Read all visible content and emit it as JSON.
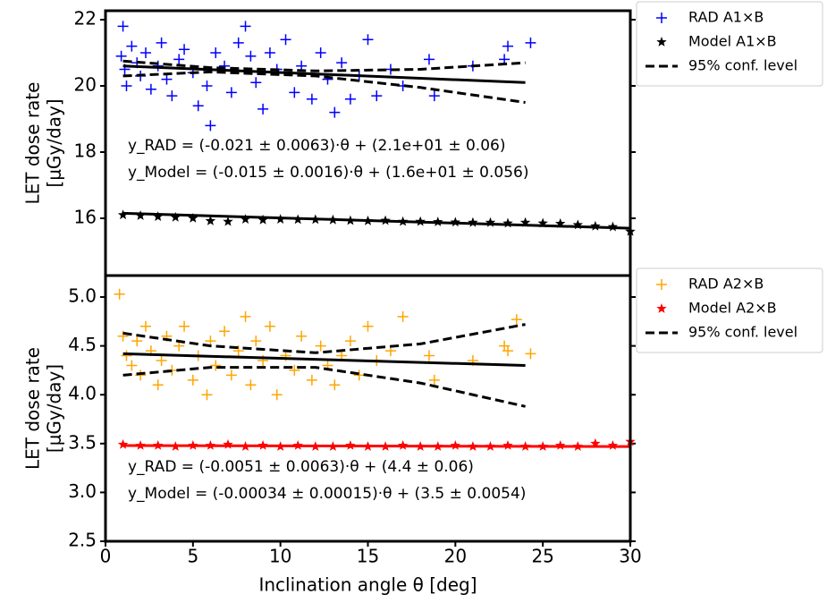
{
  "chart_data": [
    {
      "type": "scatter",
      "ylabel": [
        "LET dose rate",
        "[μGy/day]"
      ],
      "xlim": [
        0,
        30
      ],
      "ylim": [
        14.27,
        22.27
      ],
      "yticks": [
        16,
        18,
        20,
        22
      ],
      "annotations": [
        "y_RAD = (-0.021 ± 0.0063)·θ + (2.1e+01 ± 0.06)",
        "y_Model = (-0.015 ± 0.0016)·θ + (1.6e+01 ± 0.056)"
      ],
      "series": [
        {
          "name": "RAD A1×B",
          "marker": "+",
          "color": "#0000ff",
          "x": [
            1.0,
            0.9,
            1.1,
            1.2,
            1.5,
            1.8,
            2.0,
            2.3,
            2.6,
            3.0,
            3.2,
            3.5,
            3.8,
            4.2,
            4.5,
            5.0,
            5.3,
            5.8,
            6.0,
            6.3,
            6.8,
            7.2,
            7.6,
            8.0,
            8.3,
            8.6,
            9.0,
            9.4,
            9.8,
            10.3,
            10.8,
            11.2,
            11.8,
            12.3,
            12.7,
            13.1,
            13.5,
            14.0,
            14.5,
            15.0,
            15.5,
            16.3,
            17.0,
            18.5,
            18.8,
            21.0,
            22.8,
            23.0,
            24.3
          ],
          "values": [
            21.8,
            20.9,
            20.5,
            20.0,
            21.2,
            20.7,
            20.3,
            21.0,
            19.9,
            20.6,
            21.3,
            20.2,
            19.7,
            20.8,
            21.1,
            20.4,
            19.4,
            20.0,
            18.8,
            21.0,
            20.6,
            19.8,
            21.3,
            21.8,
            20.9,
            20.1,
            19.3,
            21.0,
            20.5,
            21.4,
            19.8,
            20.6,
            19.6,
            21.0,
            20.2,
            19.2,
            20.7,
            19.6,
            20.3,
            21.4,
            19.7,
            20.5,
            20.0,
            20.8,
            19.7,
            20.6,
            20.8,
            21.2,
            21.3
          ]
        },
        {
          "name": "Model A1×B",
          "marker": "*",
          "color": "#000000",
          "x": [
            1,
            2,
            3,
            4,
            5,
            6,
            7,
            8,
            9,
            10,
            11,
            12,
            13,
            14,
            15,
            16,
            17,
            18,
            19,
            20,
            21,
            22,
            23,
            24,
            25,
            26,
            27,
            28,
            29,
            30
          ],
          "values": [
            16.1,
            16.08,
            16.05,
            16.03,
            16.0,
            15.92,
            15.9,
            15.97,
            15.95,
            15.97,
            15.96,
            15.96,
            15.95,
            15.93,
            15.92,
            15.93,
            15.9,
            15.9,
            15.89,
            15.88,
            15.87,
            15.87,
            15.85,
            15.87,
            15.85,
            15.84,
            15.8,
            15.76,
            15.74,
            15.6
          ]
        },
        {
          "marker": "solid",
          "color": "#000000",
          "x": [
            1,
            24
          ],
          "values": [
            20.6,
            20.1
          ]
        },
        {
          "marker": "solid",
          "color": "#000000",
          "x": [
            1,
            30
          ],
          "values": [
            16.15,
            15.7
          ]
        },
        {
          "name": "95% conf. level",
          "marker": "dashed",
          "color": "#000000",
          "x": [
            1,
            6,
            12,
            18,
            24,
            null,
            1,
            6,
            12,
            18,
            24
          ],
          "values": [
            20.75,
            20.55,
            20.45,
            20.5,
            20.7,
            null,
            20.3,
            20.42,
            20.3,
            19.95,
            19.5
          ]
        }
      ]
    },
    {
      "type": "scatter",
      "ylabel": [
        "LET dose rate",
        "[μGy/day]"
      ],
      "xlabel": "Inclination angle θ [deg]",
      "xlim": [
        0,
        30
      ],
      "xticks": [
        0,
        5,
        10,
        15,
        20,
        25,
        30
      ],
      "ylim": [
        2.5,
        5.22
      ],
      "yticks": [
        2.5,
        {
          "value": 3,
          "label": "3.0"
        },
        3.5,
        {
          "value": 4,
          "label": "4.0"
        },
        4.5,
        {
          "value": 5,
          "label": "5.0"
        }
      ],
      "annotations": [
        "y_RAD = (-0.0051 ± 0.0063)·θ + (4.4 ± 0.06)",
        "y_Model = (-0.00034 ± 0.00015)·θ + (3.5 ± 0.0054)"
      ],
      "series": [
        {
          "name": "RAD A2×B",
          "marker": "+",
          "color": "#ffa500",
          "x": [
            0.8,
            1.0,
            1.2,
            1.5,
            1.8,
            2.0,
            2.3,
            2.6,
            3.0,
            3.2,
            3.5,
            3.8,
            4.2,
            4.5,
            5.0,
            5.3,
            5.8,
            6.0,
            6.3,
            6.8,
            7.2,
            7.6,
            8.0,
            8.3,
            8.6,
            9.0,
            9.4,
            9.8,
            10.3,
            10.8,
            11.2,
            11.8,
            12.3,
            12.7,
            13.1,
            13.5,
            14.0,
            14.5,
            15.0,
            15.5,
            16.3,
            17.0,
            18.5,
            18.8,
            21.0,
            22.8,
            23.0,
            23.5,
            24.3
          ],
          "values": [
            5.03,
            4.6,
            4.4,
            4.3,
            4.55,
            4.2,
            4.7,
            4.45,
            4.1,
            4.35,
            4.6,
            4.25,
            4.5,
            4.7,
            4.15,
            4.4,
            4.0,
            4.55,
            4.3,
            4.65,
            4.2,
            4.45,
            4.8,
            4.1,
            4.55,
            4.35,
            4.7,
            4.0,
            4.4,
            4.25,
            4.6,
            4.15,
            4.5,
            4.3,
            4.1,
            4.4,
            4.55,
            4.2,
            4.7,
            4.35,
            4.45,
            4.8,
            4.4,
            4.15,
            4.35,
            4.5,
            4.45,
            4.77,
            4.42
          ]
        },
        {
          "name": "Model A2×B",
          "marker": "*",
          "color": "#ff0000",
          "x": [
            1,
            2,
            3,
            4,
            5,
            6,
            7,
            8,
            9,
            10,
            11,
            12,
            13,
            14,
            15,
            16,
            17,
            18,
            19,
            20,
            21,
            22,
            23,
            24,
            25,
            26,
            27,
            28,
            29,
            30
          ],
          "values": [
            3.49,
            3.48,
            3.48,
            3.47,
            3.48,
            3.48,
            3.49,
            3.47,
            3.48,
            3.47,
            3.48,
            3.47,
            3.47,
            3.48,
            3.47,
            3.47,
            3.48,
            3.47,
            3.47,
            3.48,
            3.47,
            3.47,
            3.48,
            3.47,
            3.47,
            3.48,
            3.47,
            3.5,
            3.48,
            3.52
          ]
        },
        {
          "marker": "solid",
          "color": "#000000",
          "x": [
            1,
            24
          ],
          "values": [
            4.42,
            4.3
          ]
        },
        {
          "marker": "solid",
          "color": "#ff0000",
          "x": [
            1,
            30
          ],
          "values": [
            3.48,
            3.47
          ]
        },
        {
          "name": "95% conf. level",
          "marker": "dashed",
          "color": "#000000",
          "x": [
            1,
            6,
            12,
            18,
            24,
            null,
            1,
            6,
            12,
            18,
            24
          ],
          "values": [
            4.63,
            4.5,
            4.43,
            4.52,
            4.72,
            null,
            4.2,
            4.28,
            4.28,
            4.12,
            3.88
          ]
        }
      ]
    }
  ]
}
